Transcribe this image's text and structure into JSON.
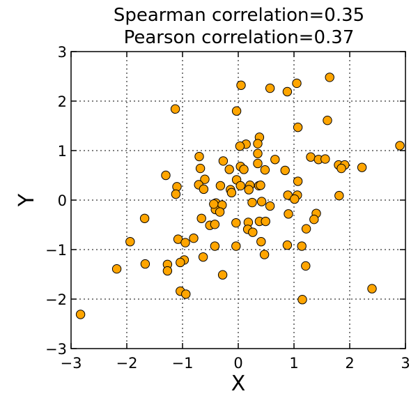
{
  "chart_data": {
    "type": "scatter",
    "title_lines": [
      "Spearman correlation=0.35",
      "Pearson correlation=0.37"
    ],
    "xlabel": "X",
    "ylabel": "Y",
    "xlim": [
      -3,
      3
    ],
    "ylim": [
      -3,
      3
    ],
    "xticks": [
      -3,
      -2,
      -1,
      0,
      1,
      2,
      3
    ],
    "yticks": [
      -3,
      -2,
      -1,
      0,
      1,
      2,
      3
    ],
    "xtick_labels": [
      "−3",
      "−2",
      "−1",
      "0",
      "1",
      "2",
      "3"
    ],
    "ytick_labels": [
      "−3",
      "−2",
      "−1",
      "0",
      "1",
      "2",
      "3"
    ],
    "grid": true,
    "marker_color": "#FFA500",
    "edge_color": "#000000",
    "points": [
      {
        "x": 0.05,
        "y": 2.32
      },
      {
        "x": 0.57,
        "y": 2.26
      },
      {
        "x": 0.88,
        "y": 2.19
      },
      {
        "x": 1.05,
        "y": 2.36
      },
      {
        "x": 1.64,
        "y": 2.48
      },
      {
        "x": -1.13,
        "y": 1.84
      },
      {
        "x": -0.03,
        "y": 1.8
      },
      {
        "x": 1.07,
        "y": 1.47
      },
      {
        "x": 1.6,
        "y": 1.61
      },
      {
        "x": 2.9,
        "y": 1.1
      },
      {
        "x": 0.38,
        "y": 1.27
      },
      {
        "x": 0.14,
        "y": 1.13
      },
      {
        "x": 0.03,
        "y": 1.09
      },
      {
        "x": 0.35,
        "y": 1.14
      },
      {
        "x": 0.35,
        "y": 0.94
      },
      {
        "x": -0.7,
        "y": 0.88
      },
      {
        "x": -0.27,
        "y": 0.79
      },
      {
        "x": 0.35,
        "y": 0.74
      },
      {
        "x": 0.66,
        "y": 0.82
      },
      {
        "x": 1.3,
        "y": 0.87
      },
      {
        "x": 1.44,
        "y": 0.82
      },
      {
        "x": 1.56,
        "y": 0.83
      },
      {
        "x": 1.8,
        "y": 0.71
      },
      {
        "x": 1.91,
        "y": 0.71
      },
      {
        "x": 1.85,
        "y": 0.64
      },
      {
        "x": 2.22,
        "y": 0.66
      },
      {
        "x": -1.3,
        "y": 0.5
      },
      {
        "x": -0.68,
        "y": 0.64
      },
      {
        "x": -0.16,
        "y": 0.62
      },
      {
        "x": 0.04,
        "y": 0.68
      },
      {
        "x": 0.1,
        "y": 0.62
      },
      {
        "x": 0.84,
        "y": 0.6
      },
      {
        "x": 0.48,
        "y": 0.61
      },
      {
        "x": -0.6,
        "y": 0.42
      },
      {
        "x": -0.71,
        "y": 0.31
      },
      {
        "x": -1.1,
        "y": 0.27
      },
      {
        "x": -0.32,
        "y": 0.29
      },
      {
        "x": -0.03,
        "y": 0.41
      },
      {
        "x": 0.04,
        "y": 0.29
      },
      {
        "x": 0.21,
        "y": 0.3
      },
      {
        "x": 0.37,
        "y": 0.29
      },
      {
        "x": 0.4,
        "y": 0.3
      },
      {
        "x": -0.62,
        "y": 0.22
      },
      {
        "x": -0.14,
        "y": 0.21
      },
      {
        "x": -0.12,
        "y": 0.15
      },
      {
        "x": 0.19,
        "y": 0.21
      },
      {
        "x": 1.07,
        "y": 0.38
      },
      {
        "x": -1.12,
        "y": 0.12
      },
      {
        "x": 0.89,
        "y": 0.1
      },
      {
        "x": 1.06,
        "y": 0.1
      },
      {
        "x": 1.81,
        "y": 0.09
      },
      {
        "x": 0.25,
        "y": -0.05
      },
      {
        "x": 0.42,
        "y": -0.03
      },
      {
        "x": 0.57,
        "y": -0.12
      },
      {
        "x": -0.4,
        "y": -0.06
      },
      {
        "x": -0.29,
        "y": -0.1
      },
      {
        "x": -0.41,
        "y": -0.19
      },
      {
        "x": -0.44,
        "y": -0.08
      },
      {
        "x": 1.01,
        "y": 0.02
      },
      {
        "x": -0.33,
        "y": -0.24
      },
      {
        "x": 0.9,
        "y": -0.28
      },
      {
        "x": 1.4,
        "y": -0.27
      },
      {
        "x": -1.68,
        "y": -0.37
      },
      {
        "x": -0.66,
        "y": -0.37
      },
      {
        "x": -0.51,
        "y": -0.51
      },
      {
        "x": -0.42,
        "y": -0.49
      },
      {
        "x": -0.04,
        "y": -0.46
      },
      {
        "x": 0.18,
        "y": -0.45
      },
      {
        "x": 0.38,
        "y": -0.43
      },
      {
        "x": 0.49,
        "y": -0.43
      },
      {
        "x": 1.36,
        "y": -0.39
      },
      {
        "x": 0.17,
        "y": -0.59
      },
      {
        "x": 0.26,
        "y": -0.65
      },
      {
        "x": 1.22,
        "y": -0.58
      },
      {
        "x": -1.08,
        "y": -0.79
      },
      {
        "x": -0.95,
        "y": -0.86
      },
      {
        "x": -0.8,
        "y": -0.77
      },
      {
        "x": -1.94,
        "y": -0.84
      },
      {
        "x": -0.42,
        "y": -0.93
      },
      {
        "x": -0.04,
        "y": -0.93
      },
      {
        "x": 0.41,
        "y": -0.84
      },
      {
        "x": 0.88,
        "y": -0.91
      },
      {
        "x": 1.14,
        "y": -0.93
      },
      {
        "x": -0.63,
        "y": -1.15
      },
      {
        "x": 0.47,
        "y": -1.1
      },
      {
        "x": -0.97,
        "y": -1.21
      },
      {
        "x": -1.04,
        "y": -1.26
      },
      {
        "x": -1.27,
        "y": -1.3
      },
      {
        "x": -1.67,
        "y": -1.29
      },
      {
        "x": -2.18,
        "y": -1.39
      },
      {
        "x": -1.27,
        "y": -1.43
      },
      {
        "x": 1.21,
        "y": -1.33
      },
      {
        "x": -0.28,
        "y": -1.51
      },
      {
        "x": -1.04,
        "y": -1.84
      },
      {
        "x": -0.94,
        "y": -1.9
      },
      {
        "x": 2.4,
        "y": -1.79
      },
      {
        "x": 1.15,
        "y": -2.01
      },
      {
        "x": -2.83,
        "y": -2.31
      }
    ]
  }
}
